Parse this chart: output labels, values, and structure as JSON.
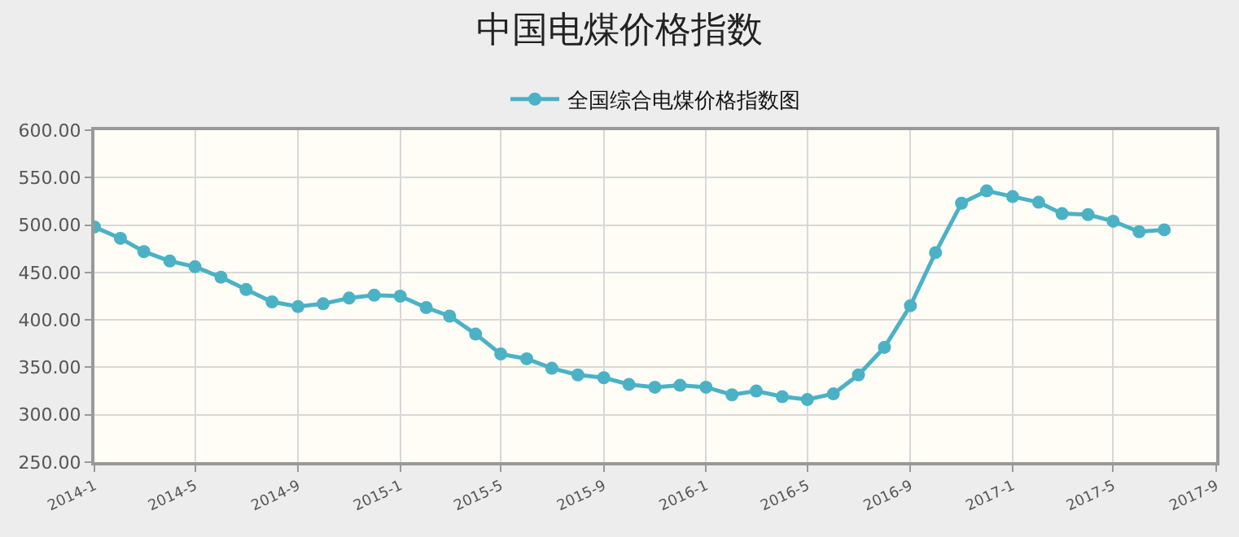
{
  "chart_data": {
    "type": "line",
    "title": "中国电煤价格指数",
    "legend": "top",
    "grid": true,
    "marker": "circle",
    "x": [
      "2014-01",
      "2014-02",
      "2014-03",
      "2014-04",
      "2014-05",
      "2014-06",
      "2014-07",
      "2014-08",
      "2014-09",
      "2014-10",
      "2014-11",
      "2014-12",
      "2015-01",
      "2015-02",
      "2015-03",
      "2015-04",
      "2015-05",
      "2015-06",
      "2015-07",
      "2015-08",
      "2015-09",
      "2015-10",
      "2015-11",
      "2015-12",
      "2016-01",
      "2016-02",
      "2016-03",
      "2016-04",
      "2016-05",
      "2016-06",
      "2016-07",
      "2016-08",
      "2016-09",
      "2016-10",
      "2016-11",
      "2016-12",
      "2017-01",
      "2017-02",
      "2017-03",
      "2017-04",
      "2017-05",
      "2017-06",
      "2017-07"
    ],
    "series": [
      {
        "name": "全国综合电煤价格指数图",
        "color": "#4bb2c5",
        "values": [
          498,
          486,
          472,
          462,
          456,
          445,
          432,
          419,
          414,
          417,
          423,
          426,
          425,
          413,
          404,
          385,
          364,
          359,
          349,
          342,
          339,
          332,
          329,
          331,
          329,
          321,
          325,
          319,
          316,
          322,
          342,
          371,
          415,
          471,
          523,
          536,
          530,
          524,
          512,
          511,
          504,
          493,
          495
        ]
      }
    ],
    "xlim": [
      "2014-01",
      "2017-09"
    ],
    "xticks": [
      {
        "value": "2014-01",
        "label": "2014-1"
      },
      {
        "value": "2014-05",
        "label": "2014-5"
      },
      {
        "value": "2014-09",
        "label": "2014-9"
      },
      {
        "value": "2015-01",
        "label": "2015-1"
      },
      {
        "value": "2015-05",
        "label": "2015-5"
      },
      {
        "value": "2015-09",
        "label": "2015-9"
      },
      {
        "value": "2016-01",
        "label": "2016-1"
      },
      {
        "value": "2016-05",
        "label": "2016-5"
      },
      {
        "value": "2016-09",
        "label": "2016-9"
      },
      {
        "value": "2017-01",
        "label": "2017-1"
      },
      {
        "value": "2017-05",
        "label": "2017-5"
      },
      {
        "value": "2017-09",
        "label": "2017-9"
      }
    ],
    "ylim": [
      250,
      600
    ],
    "yticks": [
      {
        "value": 250,
        "label": "250.00"
      },
      {
        "value": 300,
        "label": "300.00"
      },
      {
        "value": 350,
        "label": "350.00"
      },
      {
        "value": 400,
        "label": "400.00"
      },
      {
        "value": 450,
        "label": "450.00"
      },
      {
        "value": 500,
        "label": "500.00"
      },
      {
        "value": 550,
        "label": "550.00"
      },
      {
        "value": 600,
        "label": "600.00"
      }
    ]
  }
}
